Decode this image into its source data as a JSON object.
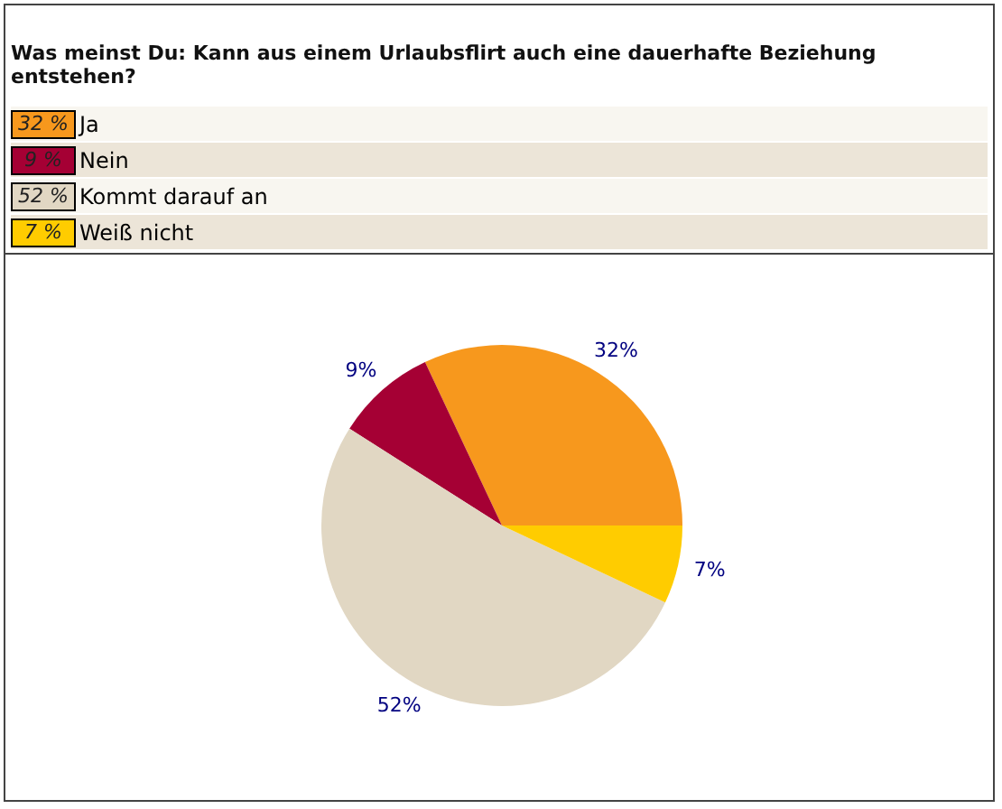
{
  "chart_data": {
    "type": "pie",
    "title": "Was meinst Du: Kann aus einem Urlaubsflirt auch eine dauerhafte Beziehung entstehen?",
    "categories": [
      "Ja",
      "Nein",
      "Kommt darauf an",
      "Weiß nicht"
    ],
    "values": [
      32,
      9,
      52,
      7
    ],
    "value_labels": [
      "32%",
      "9%",
      "52%",
      "7%"
    ],
    "annotations": [
      "32 %",
      "9 %",
      "52 %",
      "7 %"
    ],
    "colors": [
      "#f7981d",
      "#a50034",
      "#e1d7c3",
      "#ffcc00"
    ],
    "legend": "top"
  }
}
